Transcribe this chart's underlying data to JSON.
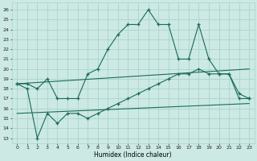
{
  "xlabel": "Humidex (Indice chaleur)",
  "background_color": "#cce9e4",
  "grid_color": "#aad4cc",
  "line_color": "#1a6b5a",
  "xlim": [
    -0.5,
    23.5
  ],
  "ylim": [
    12.5,
    26.7
  ],
  "yticks": [
    13,
    14,
    15,
    16,
    17,
    18,
    19,
    20,
    21,
    22,
    23,
    24,
    25,
    26
  ],
  "xticks": [
    0,
    1,
    2,
    3,
    4,
    5,
    6,
    7,
    8,
    9,
    10,
    11,
    12,
    13,
    14,
    15,
    16,
    17,
    18,
    19,
    20,
    21,
    22,
    23
  ],
  "series": [
    {
      "x": [
        0,
        1,
        2,
        3,
        4,
        5,
        6,
        7,
        8,
        9,
        10,
        11,
        12,
        13,
        14,
        15,
        16,
        17,
        18,
        19,
        20,
        21,
        22,
        23
      ],
      "y": [
        18.5,
        18.5,
        18.0,
        19.0,
        17.0,
        17.0,
        17.0,
        19.5,
        20.0,
        22.0,
        23.5,
        24.5,
        24.5,
        26.0,
        24.5,
        24.5,
        21.0,
        21.0,
        24.5,
        21.0,
        19.5,
        19.5,
        17.5,
        17.0
      ],
      "marker": true
    },
    {
      "x": [
        0,
        1,
        2,
        3,
        4,
        5,
        6,
        7,
        8,
        9,
        10,
        11,
        12,
        13,
        14,
        15,
        16,
        17,
        18,
        19,
        20,
        21,
        22,
        23
      ],
      "y": [
        18.5,
        18.0,
        13.0,
        15.5,
        14.5,
        15.5,
        15.5,
        15.0,
        15.5,
        16.0,
        16.5,
        17.0,
        17.5,
        18.0,
        18.5,
        19.0,
        19.5,
        19.5,
        20.0,
        19.5,
        19.5,
        19.5,
        17.0,
        17.0
      ],
      "marker": true
    },
    {
      "x": [
        0,
        23
      ],
      "y": [
        18.5,
        20.0
      ],
      "marker": false
    },
    {
      "x": [
        0,
        23
      ],
      "y": [
        15.5,
        16.5
      ],
      "marker": false
    }
  ]
}
